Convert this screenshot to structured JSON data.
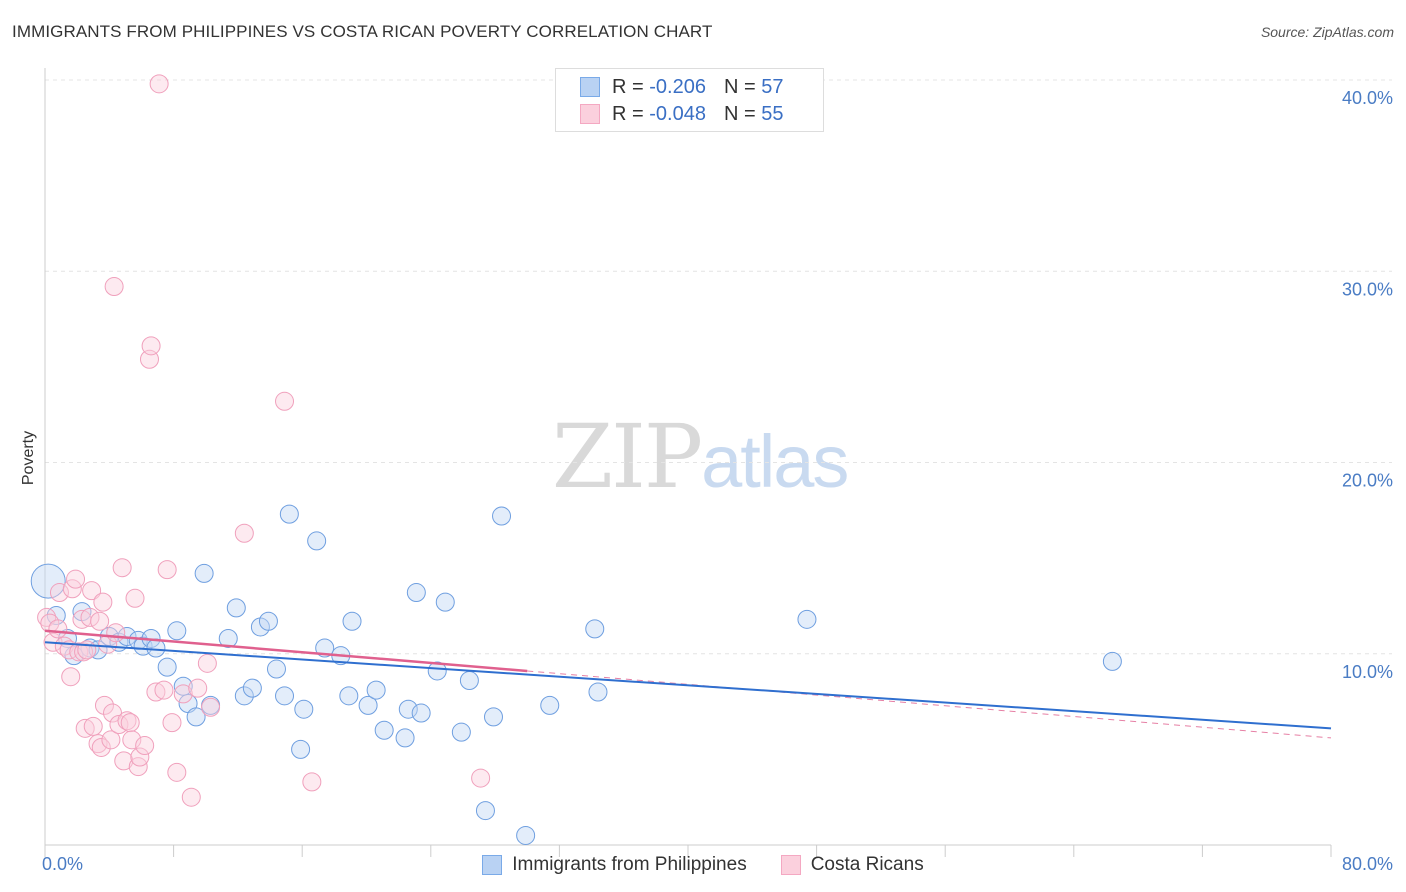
{
  "chart_data": {
    "type": "scatter",
    "title": "IMMIGRANTS FROM PHILIPPINES VS COSTA RICAN POVERTY CORRELATION CHART",
    "source": "Source: ZipAtlas.com",
    "xlabel": "",
    "ylabel": "Poverty",
    "xlim": [
      0,
      80
    ],
    "ylim": [
      0,
      40
    ],
    "x_tick_labels": [
      "0.0%",
      "80.0%"
    ],
    "y_ticks": [
      10,
      20,
      30,
      40
    ],
    "y_tick_labels": [
      "10.0%",
      "20.0%",
      "30.0%",
      "40.0%"
    ],
    "grid": true,
    "legend": {
      "placement": "top-center",
      "entries": [
        {
          "series": "Immigrants from Philippines",
          "r_label": "R = ",
          "r_value": "-0.206",
          "n_label": "N = ",
          "n_value": "57"
        },
        {
          "series": "Costa Ricans",
          "r_label": "R = ",
          "r_value": "-0.048",
          "n_label": "N = ",
          "n_value": "55"
        }
      ]
    },
    "series": [
      {
        "name": "Immigrants from Philippines",
        "color": "#7aaae8",
        "line_color": "#2f6fcf",
        "trend": {
          "x": [
            0,
            80
          ],
          "y": [
            10.6,
            6.1
          ]
        },
        "points": [
          [
            0.2,
            13.8
          ],
          [
            0.7,
            12.0
          ],
          [
            1.4,
            10.8
          ],
          [
            1.8,
            9.9
          ],
          [
            2.3,
            12.2
          ],
          [
            2.8,
            10.3
          ],
          [
            3.3,
            10.2
          ],
          [
            4.0,
            10.9
          ],
          [
            4.6,
            10.6
          ],
          [
            5.1,
            10.9
          ],
          [
            5.8,
            10.7
          ],
          [
            6.1,
            10.4
          ],
          [
            6.6,
            10.8
          ],
          [
            6.9,
            10.3
          ],
          [
            7.6,
            9.3
          ],
          [
            8.2,
            11.2
          ],
          [
            8.6,
            8.3
          ],
          [
            8.9,
            7.4
          ],
          [
            9.4,
            6.7
          ],
          [
            9.9,
            14.2
          ],
          [
            10.3,
            7.3
          ],
          [
            11.4,
            10.8
          ],
          [
            11.9,
            12.4
          ],
          [
            12.4,
            7.8
          ],
          [
            12.9,
            8.2
          ],
          [
            13.4,
            11.4
          ],
          [
            13.9,
            11.7
          ],
          [
            14.4,
            9.2
          ],
          [
            14.9,
            7.8
          ],
          [
            15.2,
            17.3
          ],
          [
            16.1,
            7.1
          ],
          [
            15.9,
            5.0
          ],
          [
            16.9,
            15.9
          ],
          [
            17.4,
            10.3
          ],
          [
            18.4,
            9.9
          ],
          [
            19.1,
            11.7
          ],
          [
            18.9,
            7.8
          ],
          [
            20.1,
            7.3
          ],
          [
            20.6,
            8.1
          ],
          [
            21.1,
            6.0
          ],
          [
            22.4,
            5.6
          ],
          [
            22.6,
            7.1
          ],
          [
            23.4,
            6.9
          ],
          [
            23.1,
            13.2
          ],
          [
            24.4,
            9.1
          ],
          [
            24.9,
            12.7
          ],
          [
            25.9,
            5.9
          ],
          [
            26.4,
            8.6
          ],
          [
            27.4,
            1.8
          ],
          [
            27.9,
            6.7
          ],
          [
            28.4,
            17.2
          ],
          [
            29.9,
            0.5
          ],
          [
            31.4,
            7.3
          ],
          [
            34.4,
            8.0
          ],
          [
            34.2,
            11.3
          ],
          [
            47.4,
            11.8
          ],
          [
            66.4,
            9.6
          ]
        ]
      },
      {
        "name": "Costa Ricans",
        "color": "#f4a8c2",
        "line_color": "#e0608e",
        "trend": {
          "x": [
            0,
            30
          ],
          "y": [
            11.2,
            9.1
          ]
        },
        "trend_ext": {
          "x": [
            30,
            80
          ],
          "y": [
            9.1,
            5.6
          ]
        },
        "points": [
          [
            0.1,
            11.9
          ],
          [
            0.3,
            11.6
          ],
          [
            0.5,
            10.6
          ],
          [
            0.8,
            11.3
          ],
          [
            0.9,
            13.2
          ],
          [
            1.2,
            10.4
          ],
          [
            1.5,
            10.2
          ],
          [
            1.6,
            8.8
          ],
          [
            1.7,
            13.4
          ],
          [
            1.9,
            13.9
          ],
          [
            2.1,
            10.1
          ],
          [
            2.3,
            11.8
          ],
          [
            2.4,
            10.1
          ],
          [
            2.5,
            6.1
          ],
          [
            2.6,
            10.2
          ],
          [
            2.8,
            11.9
          ],
          [
            2.9,
            13.3
          ],
          [
            3.0,
            6.2
          ],
          [
            3.3,
            5.3
          ],
          [
            3.4,
            11.7
          ],
          [
            3.5,
            5.1
          ],
          [
            3.6,
            12.7
          ],
          [
            3.7,
            7.3
          ],
          [
            3.9,
            10.5
          ],
          [
            4.1,
            5.5
          ],
          [
            4.2,
            6.9
          ],
          [
            4.4,
            11.1
          ],
          [
            4.6,
            6.3
          ],
          [
            4.8,
            14.5
          ],
          [
            4.9,
            4.4
          ],
          [
            5.1,
            6.5
          ],
          [
            5.3,
            6.4
          ],
          [
            5.4,
            5.5
          ],
          [
            5.6,
            12.9
          ],
          [
            5.8,
            4.1
          ],
          [
            5.9,
            4.6
          ],
          [
            6.2,
            5.2
          ],
          [
            6.5,
            25.4
          ],
          [
            6.6,
            26.1
          ],
          [
            6.9,
            8.0
          ],
          [
            7.1,
            39.8
          ],
          [
            7.4,
            8.1
          ],
          [
            7.6,
            14.4
          ],
          [
            7.9,
            6.4
          ],
          [
            8.2,
            3.8
          ],
          [
            8.6,
            7.9
          ],
          [
            9.1,
            2.5
          ],
          [
            9.5,
            8.2
          ],
          [
            10.1,
            9.5
          ],
          [
            10.3,
            7.2
          ],
          [
            12.4,
            16.3
          ],
          [
            14.9,
            23.2
          ],
          [
            4.3,
            29.2
          ],
          [
            16.6,
            3.3
          ],
          [
            27.1,
            3.5
          ]
        ]
      }
    ]
  },
  "watermark": {
    "part1": "ZIP",
    "part2": "atlas"
  }
}
